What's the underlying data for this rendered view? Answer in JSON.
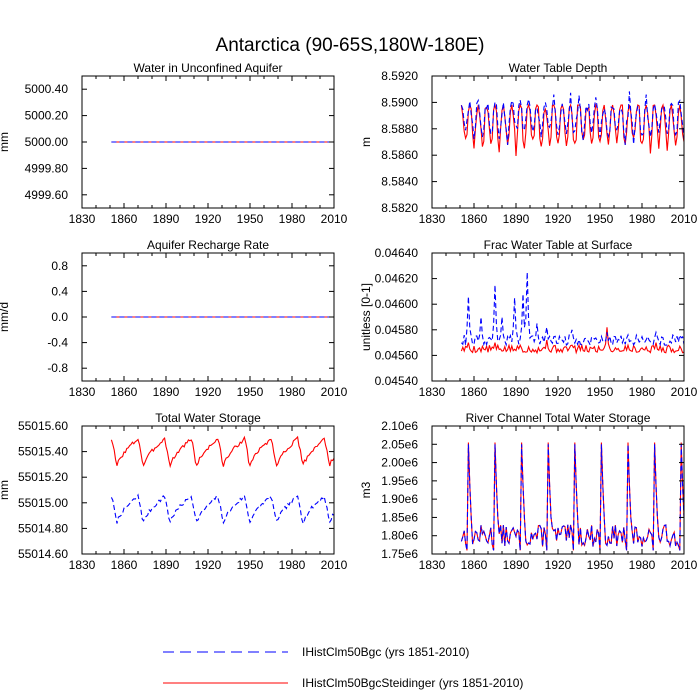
{
  "figure_title": "Antarctica (90-65S,180W-180E)",
  "colors": {
    "series_a": "#0000ff",
    "series_b": "#ff0000",
    "axis": "#000000"
  },
  "legend": [
    {
      "label": "IHistClm50Bgc (yrs 1851-2010)",
      "color": "#0000ff",
      "dash": "dashed"
    },
    {
      "label": "IHistClm50BgcSteidinger (yrs 1851-2010)",
      "color": "#ff0000",
      "dash": "solid"
    }
  ],
  "chart_data": [
    {
      "type": "line",
      "title": "Water in Unconfined Aquifer",
      "ylabel": "mm",
      "xlim": [
        1830,
        2010
      ],
      "xticks": [
        1830,
        1860,
        1890,
        1920,
        1950,
        1980,
        2010
      ],
      "ylim": [
        4999.5,
        5000.5
      ],
      "yticks": [
        4999.6,
        4999.8,
        5000.0,
        5000.2,
        5000.4
      ],
      "ytick_labels": [
        "4999.60",
        "4999.80",
        "5000.00",
        "5000.20",
        "5000.40"
      ],
      "series": [
        {
          "color": "#ff0000",
          "dash": "solid",
          "model": "flat",
          "params": {
            "value": 5000.0
          }
        },
        {
          "color": "#0000ff",
          "dash": "dashed",
          "model": "flat",
          "params": {
            "value": 5000.0
          }
        }
      ]
    },
    {
      "type": "line",
      "title": "Water Table Depth",
      "ylabel": "m",
      "xlim": [
        1830,
        2010
      ],
      "xticks": [
        1830,
        1860,
        1890,
        1920,
        1950,
        1980,
        2010
      ],
      "ylim": [
        8.582,
        8.592
      ],
      "yticks": [
        8.582,
        8.584,
        8.586,
        8.588,
        8.59,
        8.592
      ],
      "ytick_labels": [
        "8.5820",
        "8.5840",
        "8.5860",
        "8.5880",
        "8.5900",
        "8.5920"
      ],
      "series": [
        {
          "color": "#ff0000",
          "dash": "solid",
          "model": "oscillation",
          "params": {
            "mean": 8.5885,
            "amp": 0.0022,
            "period": 6,
            "jitter": 0.0004,
            "seed": 11,
            "min": 8.583,
            "max": 8.5898
          }
        },
        {
          "color": "#0000ff",
          "dash": "dashed",
          "model": "oscillation",
          "params": {
            "mean": 8.5888,
            "amp": 0.0016,
            "period": 6,
            "jitter": 0.0005,
            "seed": 23,
            "min": 8.5855,
            "max": 8.591
          }
        }
      ]
    },
    {
      "type": "line",
      "title": "Aquifer Recharge Rate",
      "ylabel": "mm/d",
      "xlim": [
        1830,
        2010
      ],
      "xticks": [
        1830,
        1860,
        1890,
        1920,
        1950,
        1980,
        2010
      ],
      "ylim": [
        -1.0,
        1.0
      ],
      "yticks": [
        -0.8,
        -0.4,
        0.0,
        0.4,
        0.8
      ],
      "ytick_labels": [
        "-0.8",
        "-0.4",
        "0.0",
        "0.4",
        "0.8"
      ],
      "series": [
        {
          "color": "#ff0000",
          "dash": "solid",
          "model": "flat",
          "params": {
            "value": 0.0
          }
        },
        {
          "color": "#0000ff",
          "dash": "dashed",
          "model": "flat",
          "params": {
            "value": 0.0
          }
        }
      ]
    },
    {
      "type": "line",
      "title": "Frac Water Table at Surface",
      "ylabel": "unitless [0-1]",
      "xlim": [
        1830,
        2010
      ],
      "xticks": [
        1830,
        1860,
        1890,
        1920,
        1950,
        1980,
        2010
      ],
      "ylim": [
        0.0454,
        0.0464
      ],
      "yticks": [
        0.0454,
        0.0456,
        0.0458,
        0.046,
        0.0462,
        0.0464
      ],
      "ytick_labels": [
        "0.04540",
        "0.04560",
        "0.04580",
        "0.04600",
        "0.04620",
        "0.04640"
      ],
      "series": [
        {
          "color": "#ff0000",
          "dash": "solid",
          "model": "baseline_spikes",
          "params": {
            "base": 0.04562,
            "jitter": 6e-05,
            "seed": 5,
            "spikes": [
              [
                1856,
                0.0457
              ],
              [
                1875,
                0.0457
              ],
              [
                1893,
                0.04568
              ],
              [
                1912,
                0.04572
              ],
              [
                1930,
                0.04568
              ],
              [
                1955,
                0.04582
              ],
              [
                1970,
                0.04568
              ],
              [
                1990,
                0.0457
              ]
            ]
          }
        },
        {
          "color": "#0000ff",
          "dash": "dashed",
          "model": "baseline_spikes",
          "params": {
            "base": 0.04568,
            "jitter": 8e-05,
            "seed": 9,
            "spikes": [
              [
                1856,
                0.04606
              ],
              [
                1865,
                0.0459
              ],
              [
                1875,
                0.04615
              ],
              [
                1880,
                0.0459
              ],
              [
                1889,
                0.04605
              ],
              [
                1895,
                0.04608
              ],
              [
                1898,
                0.04625
              ],
              [
                1905,
                0.04585
              ],
              [
                1912,
                0.04582
              ],
              [
                1930,
                0.0458
              ],
              [
                1955,
                0.04578
              ],
              [
                1970,
                0.04576
              ],
              [
                1990,
                0.04578
              ],
              [
                2005,
                0.04575
              ]
            ]
          }
        }
      ]
    },
    {
      "type": "line",
      "title": "Total Water Storage",
      "ylabel": "mm",
      "xlim": [
        1830,
        2010
      ],
      "xticks": [
        1830,
        1860,
        1890,
        1920,
        1950,
        1980,
        2010
      ],
      "ylim": [
        55014.6,
        55015.6
      ],
      "yticks": [
        55014.6,
        55014.8,
        55015.0,
        55015.2,
        55015.4,
        55015.6
      ],
      "ytick_labels": [
        "55014.60",
        "55014.80",
        "55015.00",
        "55015.20",
        "55015.40",
        "55015.60"
      ],
      "series": [
        {
          "color": "#ff0000",
          "dash": "solid",
          "model": "sawtooth",
          "params": {
            "top": 55015.5,
            "bottom": 55015.26,
            "period": 19,
            "start": 1851,
            "jitter": 0.03,
            "seed": 3
          }
        },
        {
          "color": "#0000ff",
          "dash": "dashed",
          "model": "sawtooth",
          "params": {
            "top": 55015.05,
            "bottom": 55014.82,
            "period": 19,
            "start": 1851,
            "jitter": 0.03,
            "seed": 7
          }
        }
      ]
    },
    {
      "type": "line",
      "title": "River Channel Total Water Storage",
      "ylabel": "m3",
      "xlim": [
        1830,
        2010
      ],
      "xticks": [
        1830,
        1860,
        1890,
        1920,
        1950,
        1980,
        2010
      ],
      "ylim": [
        1750000,
        2100000
      ],
      "yticks": [
        1750000,
        1800000,
        1850000,
        1900000,
        1950000,
        2000000,
        2050000,
        2100000
      ],
      "ytick_labels": [
        "1.75e6",
        "1.80e6",
        "1.85e6",
        "1.90e6",
        "1.95e6",
        "2.00e6",
        "2.05e6",
        "2.10e6"
      ],
      "series": [
        {
          "color": "#ff0000",
          "dash": "solid",
          "model": "peaks",
          "params": {
            "base": 1800000,
            "peak": 2055000,
            "period": 19,
            "first": 1856,
            "jitter": 30000,
            "seed": 13
          }
        },
        {
          "color": "#0000ff",
          "dash": "dashed",
          "model": "peaks",
          "params": {
            "base": 1800000,
            "peak": 2050000,
            "period": 19,
            "first": 1856,
            "jitter": 30000,
            "seed": 13
          }
        }
      ]
    }
  ]
}
